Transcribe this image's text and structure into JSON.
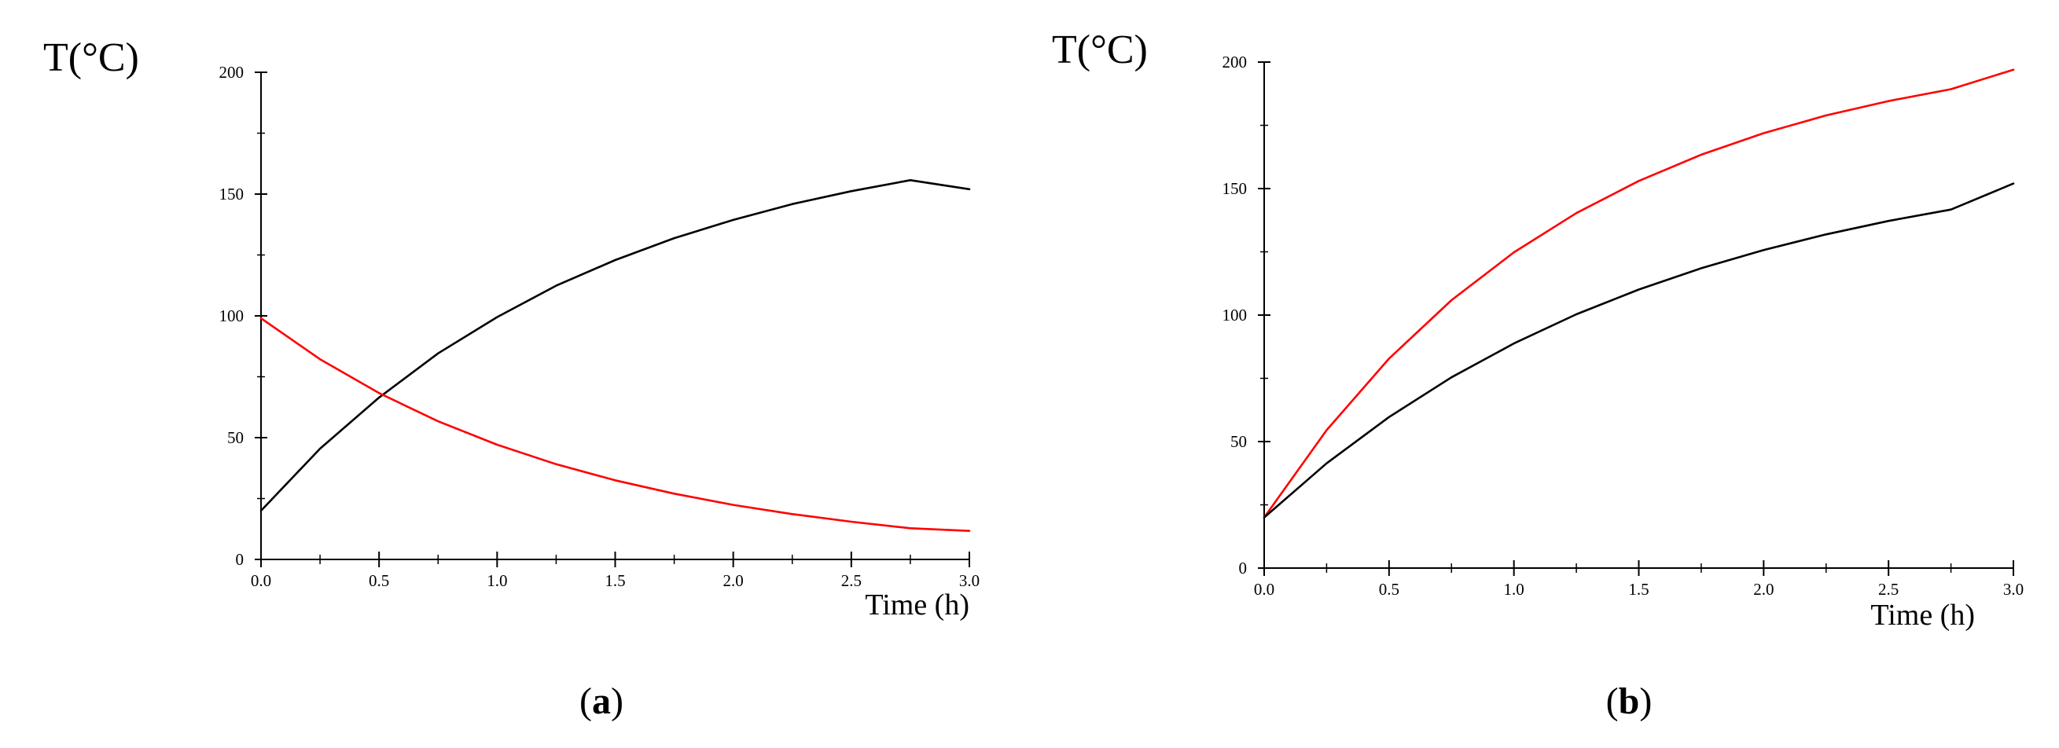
{
  "chart_data": [
    {
      "type": "line",
      "panel_label": "a",
      "title": "",
      "ylabel": "T(°C)",
      "xlabel": "Time (h)",
      "xlim": [
        0,
        3
      ],
      "ylim": [
        0,
        200
      ],
      "grid": false,
      "x_ticks": [
        0.0,
        0.5,
        1.0,
        1.5,
        2.0,
        2.5,
        3.0
      ],
      "x_tick_labels": [
        "0.0",
        "0.5",
        "1.0",
        "1.5",
        "2.0",
        "2.5",
        "3.0"
      ],
      "y_ticks": [
        0,
        50,
        100,
        150,
        200
      ],
      "y_tick_labels": [
        "0",
        "50",
        "100",
        "150",
        "200"
      ],
      "series": [
        {
          "name": "black",
          "color": "#000000",
          "x": [
            0,
            0.25,
            0.5,
            0.75,
            1.0,
            1.25,
            1.5,
            1.75,
            2.0,
            2.25,
            2.5,
            2.75,
            3.0
          ],
          "y": [
            20,
            45.5,
            66.5,
            84.6,
            99.5,
            112.4,
            122.9,
            131.9,
            139.4,
            145.9,
            151.2,
            155.7,
            152
          ]
        },
        {
          "name": "red",
          "color": "#ff0000",
          "x": [
            0,
            0.25,
            0.5,
            0.75,
            1.0,
            1.25,
            1.5,
            1.75,
            2.0,
            2.25,
            2.5,
            2.75,
            3.0
          ],
          "y": [
            99,
            82.2,
            68.3,
            56.7,
            47.1,
            39.1,
            32.5,
            27.0,
            22.4,
            18.6,
            15.5,
            12.8,
            11.7
          ]
        }
      ]
    },
    {
      "type": "line",
      "panel_label": "b",
      "title": "",
      "ylabel": "T(°C)",
      "xlabel": "Time (h)",
      "xlim": [
        0,
        3
      ],
      "ylim": [
        0,
        200
      ],
      "grid": false,
      "x_ticks": [
        0.0,
        0.5,
        1.0,
        1.5,
        2.0,
        2.5,
        3.0
      ],
      "x_tick_labels": [
        "0.0",
        "0.5",
        "1.0",
        "1.5",
        "2.0",
        "2.5",
        "3.0"
      ],
      "y_ticks": [
        0,
        50,
        100,
        150,
        200
      ],
      "y_tick_labels": [
        "0",
        "50",
        "100",
        "150",
        "200"
      ],
      "series": [
        {
          "name": "red",
          "color": "#ff0000",
          "x": [
            0,
            0.25,
            0.5,
            0.75,
            1.0,
            1.25,
            1.5,
            1.75,
            2.0,
            2.25,
            2.5,
            2.75,
            3.0
          ],
          "y": [
            20,
            54.5,
            82.8,
            105.9,
            124.8,
            140.3,
            153.0,
            163.4,
            171.9,
            178.9,
            184.6,
            189.3,
            197
          ]
        },
        {
          "name": "black",
          "color": "#000000",
          "x": [
            0,
            0.25,
            0.5,
            0.75,
            1.0,
            1.25,
            1.5,
            1.75,
            2.0,
            2.25,
            2.5,
            2.75,
            3.0
          ],
          "y": [
            20,
            41.4,
            59.7,
            75.4,
            88.8,
            100.3,
            110.1,
            118.5,
            125.7,
            131.9,
            137.2,
            141.7,
            152
          ]
        }
      ]
    }
  ]
}
